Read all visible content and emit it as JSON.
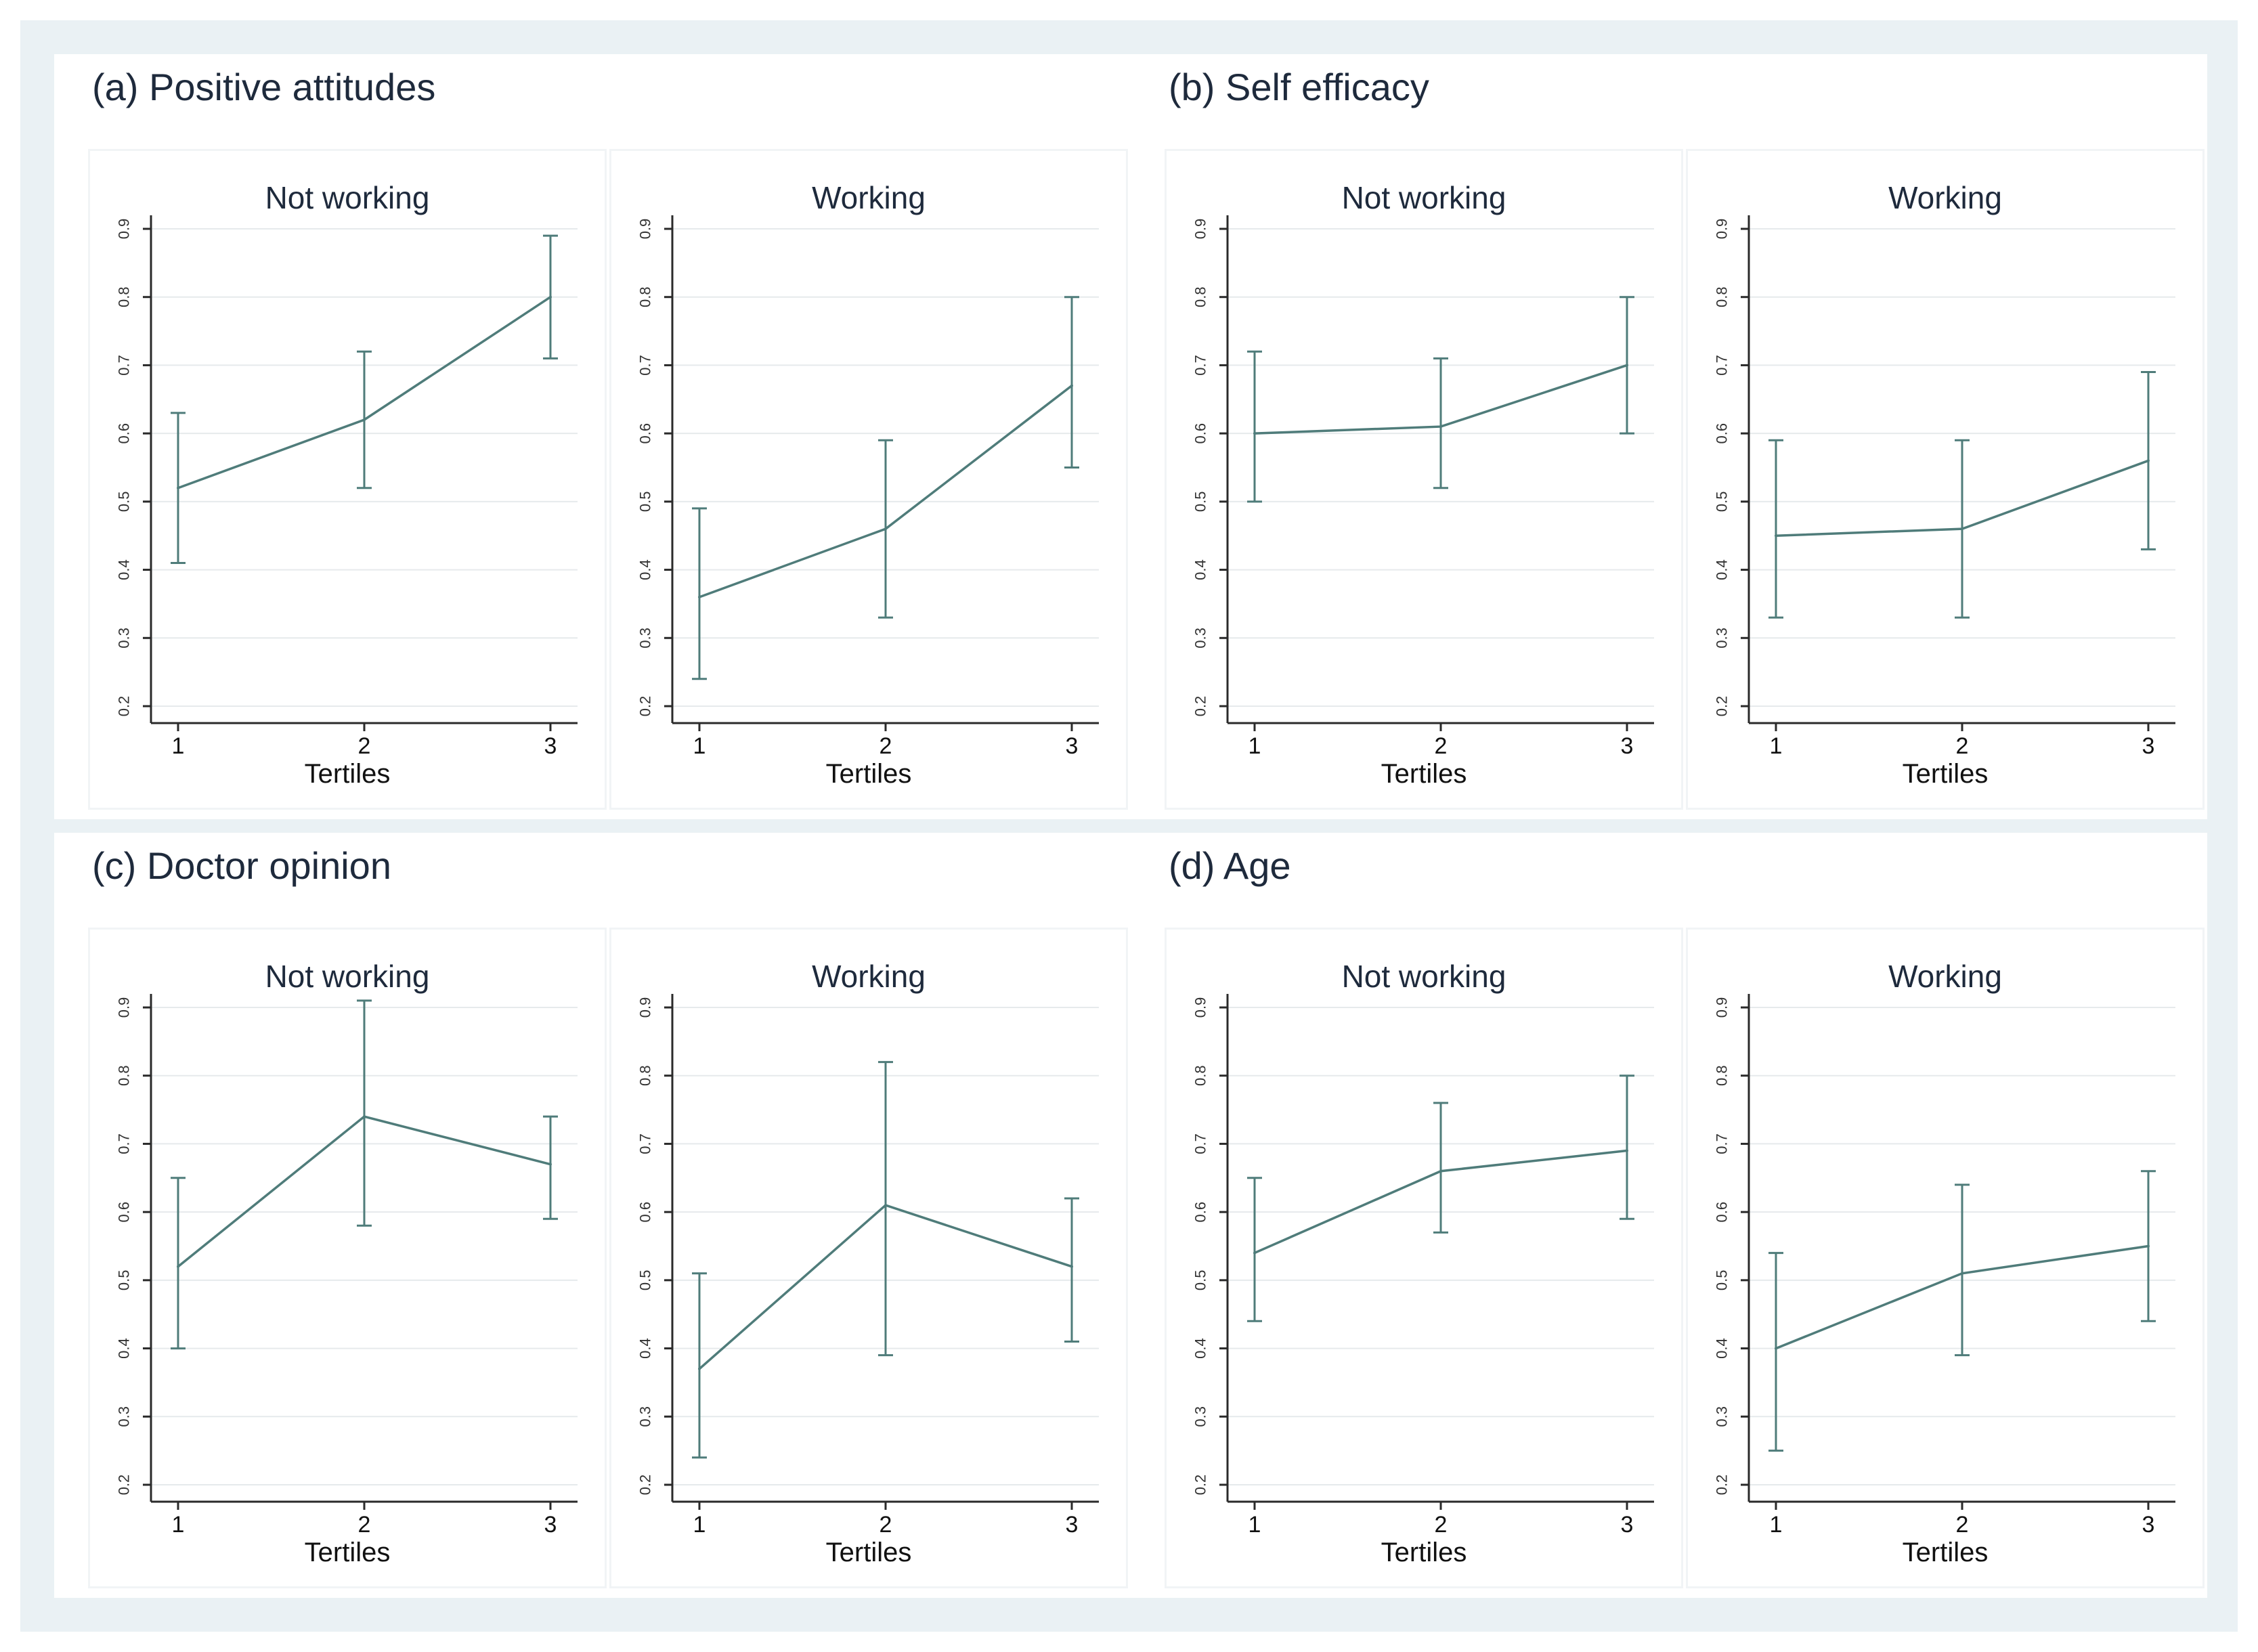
{
  "figure": {
    "colors": {
      "line": "#4f7c7a",
      "axis": "#2a2a2a",
      "grid": "#e6eaec",
      "panel_bg": "#eaf1f4"
    }
  },
  "chart_data": [
    {
      "type": "line",
      "title": "(a) Positive attitudes",
      "panels": [
        {
          "label": "Not working",
          "xlabel": "Tertiles",
          "x": [
            1,
            2,
            3
          ],
          "y": [
            0.52,
            0.62,
            0.8
          ],
          "ci_low": [
            0.41,
            0.52,
            0.71
          ],
          "ci_high": [
            0.63,
            0.72,
            0.89
          ],
          "ylim": [
            0.2,
            0.9
          ],
          "yticks": [
            "0.2",
            "0.3",
            "0.4",
            "0.5",
            "0.6",
            "0.7",
            "0.8",
            "0.9"
          ],
          "xticks": [
            "1",
            "2",
            "3"
          ]
        },
        {
          "label": "Working",
          "xlabel": "Tertiles",
          "x": [
            1,
            2,
            3
          ],
          "y": [
            0.36,
            0.46,
            0.67
          ],
          "ci_low": [
            0.24,
            0.33,
            0.55
          ],
          "ci_high": [
            0.49,
            0.59,
            0.8
          ],
          "ylim": [
            0.2,
            0.9
          ],
          "yticks": [
            "0.2",
            "0.3",
            "0.4",
            "0.5",
            "0.6",
            "0.7",
            "0.8",
            "0.9"
          ],
          "xticks": [
            "1",
            "2",
            "3"
          ]
        }
      ]
    },
    {
      "type": "line",
      "title": "(b) Self efficacy",
      "panels": [
        {
          "label": "Not working",
          "xlabel": "Tertiles",
          "x": [
            1,
            2,
            3
          ],
          "y": [
            0.6,
            0.61,
            0.7
          ],
          "ci_low": [
            0.5,
            0.52,
            0.6
          ],
          "ci_high": [
            0.72,
            0.71,
            0.8
          ],
          "ylim": [
            0.2,
            0.9
          ],
          "yticks": [
            "0.2",
            "0.3",
            "0.4",
            "0.5",
            "0.6",
            "0.7",
            "0.8",
            "0.9"
          ],
          "xticks": [
            "1",
            "2",
            "3"
          ]
        },
        {
          "label": "Working",
          "xlabel": "Tertiles",
          "x": [
            1,
            2,
            3
          ],
          "y": [
            0.45,
            0.46,
            0.56
          ],
          "ci_low": [
            0.33,
            0.33,
            0.43
          ],
          "ci_high": [
            0.59,
            0.59,
            0.69
          ],
          "ylim": [
            0.2,
            0.9
          ],
          "yticks": [
            "0.2",
            "0.3",
            "0.4",
            "0.5",
            "0.6",
            "0.7",
            "0.8",
            "0.9"
          ],
          "xticks": [
            "1",
            "2",
            "3"
          ]
        }
      ]
    },
    {
      "type": "line",
      "title": "(c) Doctor opinion",
      "panels": [
        {
          "label": "Not working",
          "xlabel": "Tertiles",
          "x": [
            1,
            2,
            3
          ],
          "y": [
            0.52,
            0.74,
            0.67
          ],
          "ci_low": [
            0.4,
            0.58,
            0.59
          ],
          "ci_high": [
            0.65,
            0.91,
            0.74
          ],
          "ylim": [
            0.2,
            0.9
          ],
          "yticks": [
            "0.2",
            "0.3",
            "0.4",
            "0.5",
            "0.6",
            "0.7",
            "0.8",
            "0.9"
          ],
          "xticks": [
            "1",
            "2",
            "3"
          ]
        },
        {
          "label": "Working",
          "xlabel": "Tertiles",
          "x": [
            1,
            2,
            3
          ],
          "y": [
            0.37,
            0.61,
            0.52
          ],
          "ci_low": [
            0.24,
            0.39,
            0.41
          ],
          "ci_high": [
            0.51,
            0.82,
            0.62
          ],
          "ylim": [
            0.2,
            0.9
          ],
          "yticks": [
            "0.2",
            "0.3",
            "0.4",
            "0.5",
            "0.6",
            "0.7",
            "0.8",
            "0.9"
          ],
          "xticks": [
            "1",
            "2",
            "3"
          ]
        }
      ]
    },
    {
      "type": "line",
      "title": "(d) Age",
      "panels": [
        {
          "label": "Not working",
          "xlabel": "Tertiles",
          "x": [
            1,
            2,
            3
          ],
          "y": [
            0.54,
            0.66,
            0.69
          ],
          "ci_low": [
            0.44,
            0.57,
            0.59
          ],
          "ci_high": [
            0.65,
            0.76,
            0.8
          ],
          "ylim": [
            0.2,
            0.9
          ],
          "yticks": [
            "0.2",
            "0.3",
            "0.4",
            "0.5",
            "0.6",
            "0.7",
            "0.8",
            "0.9"
          ],
          "xticks": [
            "1",
            "2",
            "3"
          ]
        },
        {
          "label": "Working",
          "xlabel": "Tertiles",
          "x": [
            1,
            2,
            3
          ],
          "y": [
            0.4,
            0.51,
            0.55
          ],
          "ci_low": [
            0.25,
            0.39,
            0.44
          ],
          "ci_high": [
            0.54,
            0.64,
            0.66
          ],
          "ylim": [
            0.2,
            0.9
          ],
          "yticks": [
            "0.2",
            "0.3",
            "0.4",
            "0.5",
            "0.6",
            "0.7",
            "0.8",
            "0.9"
          ],
          "xticks": [
            "1",
            "2",
            "3"
          ]
        }
      ]
    }
  ]
}
